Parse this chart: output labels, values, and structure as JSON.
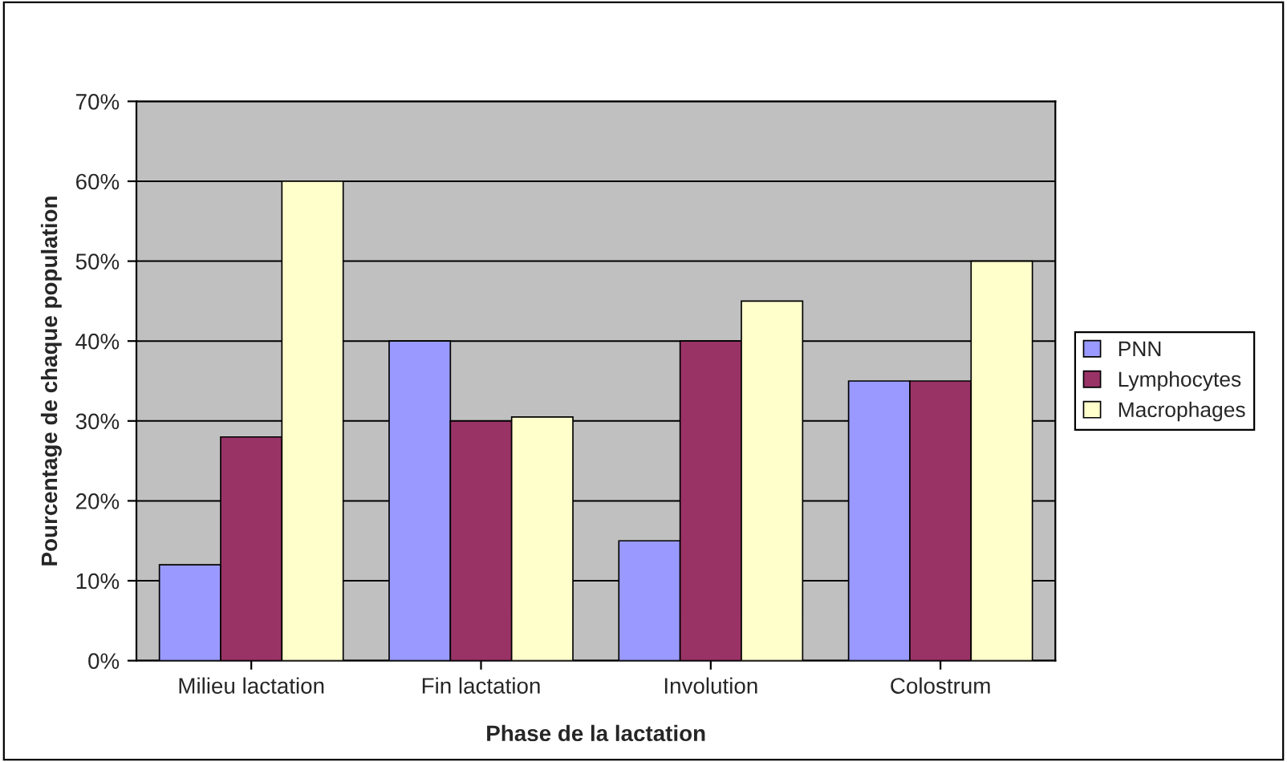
{
  "chart_data": {
    "type": "bar",
    "xlabel": "Phase de la lactation",
    "ylabel": "Pourcentage de chaque population",
    "categories": [
      "Milieu lactation",
      "Fin lactation",
      "Involution",
      "Colostrum"
    ],
    "series": [
      {
        "name": "PNN",
        "color": "#9999ff",
        "values": [
          12,
          40,
          15,
          35
        ]
      },
      {
        "name": "Lymphocytes",
        "color": "#993366",
        "values": [
          28,
          30,
          40,
          35
        ]
      },
      {
        "name": "Macrophages",
        "color": "#ffffcc",
        "values": [
          60,
          30.5,
          45,
          50
        ]
      }
    ],
    "ylim": [
      0,
      70
    ],
    "yticks": [
      {
        "value": 0,
        "label": "0%"
      },
      {
        "value": 10,
        "label": "10%"
      },
      {
        "value": 20,
        "label": "20%"
      },
      {
        "value": 30,
        "label": "30%"
      },
      {
        "value": 40,
        "label": "40%"
      },
      {
        "value": 50,
        "label": "50%"
      },
      {
        "value": 60,
        "label": "60%"
      },
      {
        "value": 70,
        "label": "70%"
      }
    ],
    "grid": "y",
    "legend": "right"
  }
}
